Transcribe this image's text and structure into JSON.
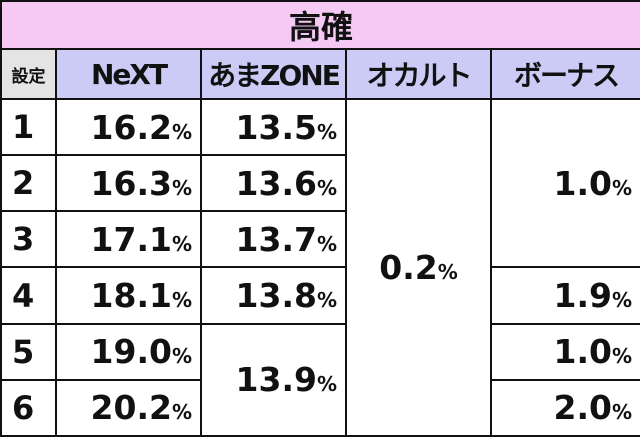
{
  "title": "高確",
  "table": {
    "header": [
      "設定",
      "NeXT",
      "あまZONE",
      "オカルト",
      "ボーナス"
    ],
    "rows": [
      {
        "setting": "1",
        "next": {
          "value": "16.2",
          "unit": "%"
        },
        "amazone": {
          "value": "13.5",
          "unit": "%"
        },
        "occult": {
          "value": "0.2",
          "unit": "%"
        },
        "bonus": {
          "value": "1.0",
          "unit": "%"
        }
      },
      {
        "setting": "2",
        "next": {
          "value": "16.3",
          "unit": "%"
        },
        "amazone": {
          "value": "13.6",
          "unit": "%"
        }
      },
      {
        "setting": "3",
        "next": {
          "value": "17.1",
          "unit": "%"
        },
        "amazone": {
          "value": "13.7",
          "unit": "%"
        }
      },
      {
        "setting": "4",
        "next": {
          "value": "18.1",
          "unit": "%"
        },
        "amazone": {
          "value": "13.8",
          "unit": "%"
        },
        "bonus": {
          "value": "1.9",
          "unit": "%"
        }
      },
      {
        "setting": "5",
        "next": {
          "value": "19.0",
          "unit": "%"
        },
        "amazone": {
          "value": "13.9",
          "unit": "%"
        },
        "bonus": {
          "value": "1.0",
          "unit": "%"
        }
      },
      {
        "setting": "6",
        "next": {
          "value": "20.2",
          "unit": "%"
        },
        "bonus": {
          "value": "2.0",
          "unit": "%"
        }
      }
    ]
  }
}
